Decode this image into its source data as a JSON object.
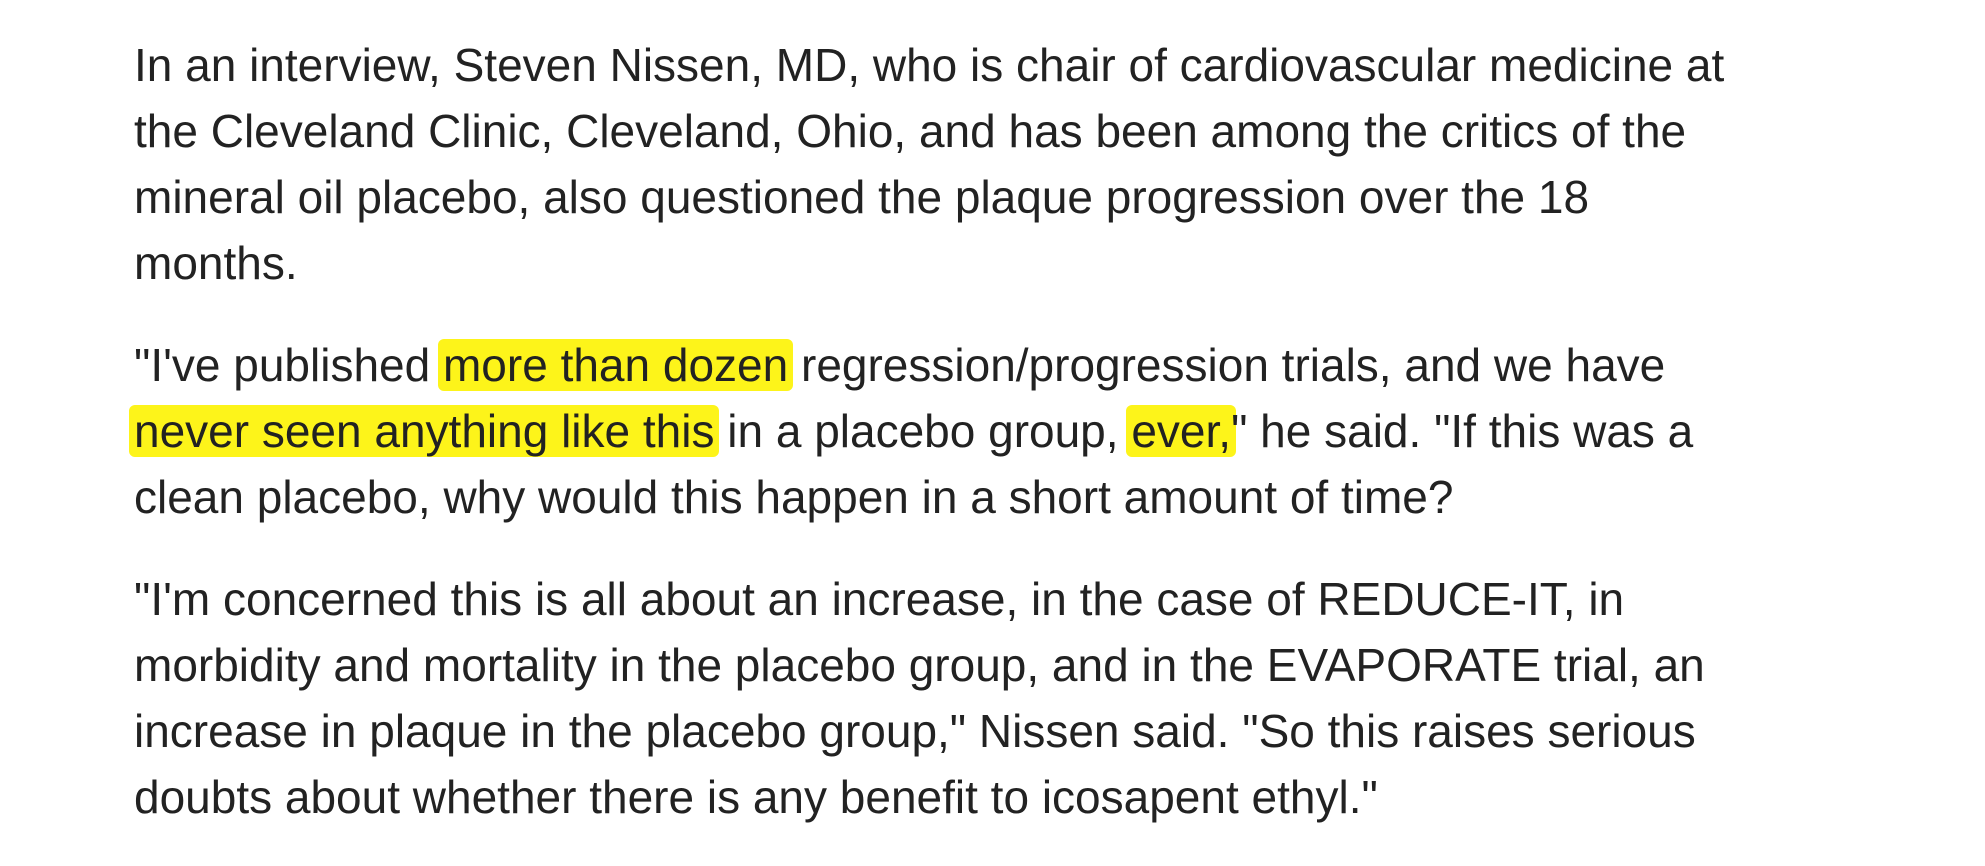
{
  "article": {
    "paragraph_1": {
      "lines": [
        "In an interview, Steven Nissen, MD, who is chair of cardiovascular medicine at",
        "the Cleveland Clinic, Cleveland, Ohio, and has been among the critics of the",
        "mineral oil placebo, also questioned the plaque progression over the 18",
        "months."
      ]
    },
    "paragraph_2": {
      "line_1_start": "\"I've published ",
      "line_1_highlight": "more than dozen",
      "line_1_end": " regression/progression trials, and we have",
      "line_2_highlight_1": "never seen anything like this",
      "line_2_mid": " in a placebo group, ",
      "line_2_highlight_2": "ever,",
      "line_2_end": "\" he said. \"If this was a",
      "line_3": "clean placebo, why would this happen in a short amount of time?"
    },
    "paragraph_3": {
      "lines": [
        "\"I'm concerned this is all about an increase, in the case of REDUCE-IT, in",
        "morbidity and mortality in the placebo group, and in the EVAPORATE trial, an",
        "increase in plaque in the placebo group,\" Nissen said. \"So this raises serious",
        "doubts about whether there is any benefit to icosapent ethyl.\""
      ]
    },
    "highlight_color": "#fdf41a",
    "text_color": "#222222"
  }
}
